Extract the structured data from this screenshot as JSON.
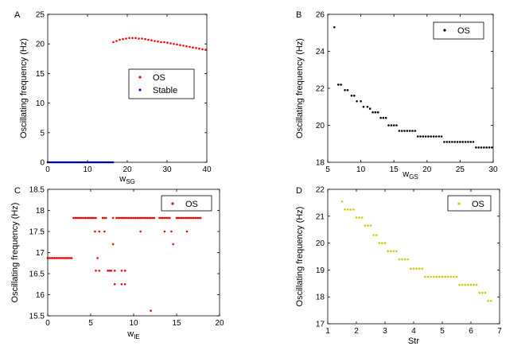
{
  "chart_data": [
    {
      "type": "scatter",
      "panel_letter": "A",
      "xlabel_main": "w",
      "xlabel_sub": "SG",
      "ylabel": "Oscillating frequency (Hz)",
      "xlim": [
        0,
        40
      ],
      "ylim": [
        0,
        25
      ],
      "xticks": [
        "0",
        "10",
        "20",
        "30",
        "40"
      ],
      "yticks": [
        "0",
        "5",
        "10",
        "15",
        "20",
        "25"
      ],
      "legend": {
        "position": "center-right",
        "entries": [
          "OS",
          "Stable"
        ]
      },
      "series": [
        {
          "name": "OS",
          "color": "#ff0000",
          "x": [
            16.5,
            17.3,
            18.1,
            18.9,
            19.7,
            20.5,
            21.3,
            22.1,
            22.9,
            23.7,
            24.5,
            25.3,
            26.1,
            26.9,
            27.7,
            28.5,
            29.3,
            30.1,
            30.9,
            31.7,
            32.5,
            33.3,
            34.1,
            34.9,
            35.7,
            36.5,
            37.3,
            38.1,
            38.9,
            39.7
          ],
          "y": [
            20.3,
            20.5,
            20.7,
            20.8,
            20.9,
            21.0,
            21.0,
            21.0,
            20.9,
            20.9,
            20.8,
            20.7,
            20.6,
            20.5,
            20.4,
            20.3,
            20.3,
            20.2,
            20.1,
            20.0,
            19.9,
            19.8,
            19.7,
            19.6,
            19.5,
            19.4,
            19.3,
            19.2,
            19.1,
            19.0
          ]
        },
        {
          "name": "Stable",
          "color": "#0000ff",
          "x": [
            0.0,
            0.4,
            0.8,
            1.2,
            1.6,
            2.0,
            2.4,
            2.8,
            3.2,
            3.6,
            4.0,
            4.4,
            4.8,
            5.2,
            5.6,
            6.0,
            6.4,
            6.8,
            7.2,
            7.6,
            8.0,
            8.4,
            8.8,
            9.2,
            9.6,
            10.0,
            10.4,
            10.8,
            11.2,
            11.6,
            12.0,
            12.4,
            12.8,
            13.2,
            13.6,
            14.0,
            14.4,
            14.8,
            15.2,
            15.6,
            16.0,
            16.4
          ],
          "y": [
            0,
            0,
            0,
            0,
            0,
            0,
            0,
            0,
            0,
            0,
            0,
            0,
            0,
            0,
            0,
            0,
            0,
            0,
            0,
            0,
            0,
            0,
            0,
            0,
            0,
            0,
            0,
            0,
            0,
            0,
            0,
            0,
            0,
            0,
            0,
            0,
            0,
            0,
            0,
            0,
            0,
            0
          ]
        }
      ]
    },
    {
      "type": "scatter",
      "panel_letter": "B",
      "xlabel_main": "w",
      "xlabel_sub": "GS",
      "ylabel": "Oscillating frequency (Hz)",
      "xlim": [
        5,
        30
      ],
      "ylim": [
        18,
        26
      ],
      "xticks": [
        "5",
        "10",
        "15",
        "20",
        "25",
        "30"
      ],
      "yticks": [
        "18",
        "20",
        "22",
        "24",
        "26"
      ],
      "legend": {
        "position": "top-right",
        "entries": [
          "OS"
        ]
      },
      "series": [
        {
          "name": "OS",
          "color": "#000000",
          "x": [
            6.0,
            6.6,
            7.0,
            7.6,
            8.0,
            8.6,
            9.0,
            9.4,
            10.0,
            10.4,
            11.0,
            11.4,
            11.8,
            12.2,
            12.6,
            13.0,
            13.4,
            13.8,
            14.2,
            14.6,
            15.0,
            15.4,
            15.8,
            16.2,
            16.6,
            17.0,
            17.4,
            17.8,
            18.2,
            18.6,
            19.0,
            19.4,
            19.8,
            20.2,
            20.6,
            21.0,
            21.4,
            21.8,
            22.2,
            22.6,
            23.0,
            23.4,
            23.8,
            24.2,
            24.6,
            25.0,
            25.4,
            25.8,
            26.2,
            26.6,
            27.0,
            27.4,
            27.8,
            28.2,
            28.6,
            29.0,
            29.4,
            29.8
          ],
          "y": [
            25.3,
            22.2,
            22.2,
            21.9,
            21.9,
            21.6,
            21.6,
            21.3,
            21.3,
            21.0,
            21.0,
            20.9,
            20.7,
            20.7,
            20.7,
            20.4,
            20.4,
            20.4,
            20.0,
            20.0,
            20.0,
            20.0,
            19.7,
            19.7,
            19.7,
            19.7,
            19.7,
            19.7,
            19.7,
            19.4,
            19.4,
            19.4,
            19.4,
            19.4,
            19.4,
            19.4,
            19.4,
            19.4,
            19.4,
            19.1,
            19.1,
            19.1,
            19.1,
            19.1,
            19.1,
            19.1,
            19.1,
            19.1,
            19.1,
            19.1,
            19.1,
            18.8,
            18.8,
            18.8,
            18.8,
            18.8,
            18.8,
            18.8
          ]
        }
      ]
    },
    {
      "type": "scatter",
      "panel_letter": "C",
      "xlabel_main": "w",
      "xlabel_sub": "IE",
      "ylabel": "Oscillating frequency (Hz)",
      "xlim": [
        0,
        20
      ],
      "ylim": [
        15.5,
        18.5
      ],
      "xticks": [
        "0",
        "5",
        "10",
        "15",
        "20"
      ],
      "yticks": [
        "15.5",
        "16",
        "16.5",
        "17",
        "17.5",
        "18",
        "18.5"
      ],
      "legend": {
        "position": "top-right",
        "entries": [
          "OS"
        ]
      },
      "series": [
        {
          "name": "OS",
          "color": "#ff0000",
          "x": [
            0.0,
            0.2,
            0.4,
            0.6,
            0.8,
            1.0,
            1.2,
            1.4,
            1.6,
            1.8,
            2.0,
            2.2,
            2.4,
            2.6,
            2.8,
            3.0,
            3.2,
            3.4,
            3.6,
            3.8,
            4.0,
            4.2,
            4.4,
            4.6,
            4.8,
            5.0,
            5.2,
            5.4,
            5.6,
            6.4,
            6.6,
            6.8,
            7.6,
            8.0,
            8.2,
            8.4,
            8.6,
            8.8,
            9.0,
            9.2,
            9.4,
            9.6,
            9.8,
            10.0,
            10.2,
            10.4,
            10.6,
            10.8,
            11.0,
            11.2,
            11.4,
            11.6,
            11.8,
            12.0,
            12.2,
            12.4,
            13.0,
            13.2,
            13.4,
            13.6,
            13.8,
            14.0,
            14.2,
            15.0,
            15.2,
            15.4,
            15.6,
            15.8,
            16.0,
            16.2,
            16.4,
            16.6,
            16.8,
            17.0,
            17.2,
            17.4,
            17.6,
            17.8,
            5.5,
            6.0,
            6.6,
            10.8,
            13.6,
            14.4,
            16.2,
            7.6,
            14.6,
            5.8,
            7.2,
            7.4,
            5.6,
            6.0,
            7.0,
            7.8,
            8.6,
            9.0,
            7.8,
            8.6,
            9.0,
            12.0
          ],
          "y": [
            16.87,
            16.87,
            16.87,
            16.87,
            16.87,
            16.87,
            16.87,
            16.87,
            16.87,
            16.87,
            16.87,
            16.87,
            16.87,
            16.87,
            16.87,
            17.82,
            17.82,
            17.82,
            17.82,
            17.82,
            17.82,
            17.82,
            17.82,
            17.82,
            17.82,
            17.82,
            17.82,
            17.82,
            17.82,
            17.82,
            17.82,
            17.82,
            17.82,
            17.82,
            17.82,
            17.82,
            17.82,
            17.82,
            17.82,
            17.82,
            17.82,
            17.82,
            17.82,
            17.82,
            17.82,
            17.82,
            17.82,
            17.82,
            17.82,
            17.82,
            17.82,
            17.82,
            17.82,
            17.82,
            17.82,
            17.82,
            17.82,
            17.82,
            17.82,
            17.82,
            17.82,
            17.82,
            17.82,
            17.82,
            17.82,
            17.82,
            17.82,
            17.82,
            17.82,
            17.82,
            17.82,
            17.82,
            17.82,
            17.82,
            17.82,
            17.82,
            17.82,
            17.82,
            17.5,
            17.5,
            17.5,
            17.5,
            17.5,
            17.5,
            17.5,
            17.2,
            17.2,
            16.87,
            16.57,
            16.57,
            16.57,
            16.57,
            16.57,
            16.57,
            16.57,
            16.57,
            16.25,
            16.25,
            16.25,
            15.62
          ]
        }
      ]
    },
    {
      "type": "scatter",
      "panel_letter": "D",
      "xlabel_main": "Str",
      "xlabel_sub": "",
      "ylabel": "Oscillating frequency (Hz)",
      "xlim": [
        1,
        7
      ],
      "ylim": [
        17,
        22
      ],
      "xticks": [
        "1",
        "2",
        "3",
        "4",
        "5",
        "6",
        "7"
      ],
      "yticks": [
        "17",
        "18",
        "19",
        "20",
        "21",
        "22"
      ],
      "legend": {
        "position": "top-right",
        "entries": [
          "OS"
        ]
      },
      "series": [
        {
          "name": "OS",
          "color": "#cccc00",
          "x": [
            1.5,
            1.6,
            1.7,
            1.8,
            1.9,
            2.0,
            2.1,
            2.2,
            2.3,
            2.4,
            2.5,
            2.6,
            2.7,
            2.8,
            2.9,
            3.0,
            3.1,
            3.2,
            3.3,
            3.4,
            3.5,
            3.6,
            3.7,
            3.8,
            3.9,
            4.0,
            4.1,
            4.2,
            4.3,
            4.4,
            4.5,
            4.6,
            4.7,
            4.8,
            4.9,
            5.0,
            5.1,
            5.2,
            5.3,
            5.4,
            5.5,
            5.6,
            5.7,
            5.8,
            5.9,
            6.0,
            6.1,
            6.2,
            6.3,
            6.4,
            6.5,
            6.6,
            6.7
          ],
          "y": [
            21.55,
            21.25,
            21.25,
            21.25,
            21.25,
            20.95,
            20.95,
            20.95,
            20.65,
            20.65,
            20.65,
            20.3,
            20.3,
            20.0,
            20.0,
            20.0,
            19.7,
            19.7,
            19.7,
            19.7,
            19.4,
            19.4,
            19.4,
            19.4,
            19.05,
            19.05,
            19.05,
            19.05,
            19.05,
            18.75,
            18.75,
            18.75,
            18.75,
            18.75,
            18.75,
            18.75,
            18.75,
            18.75,
            18.75,
            18.75,
            18.75,
            18.45,
            18.45,
            18.45,
            18.45,
            18.45,
            18.45,
            18.45,
            18.15,
            18.15,
            18.15,
            17.85,
            17.85
          ]
        }
      ]
    }
  ]
}
